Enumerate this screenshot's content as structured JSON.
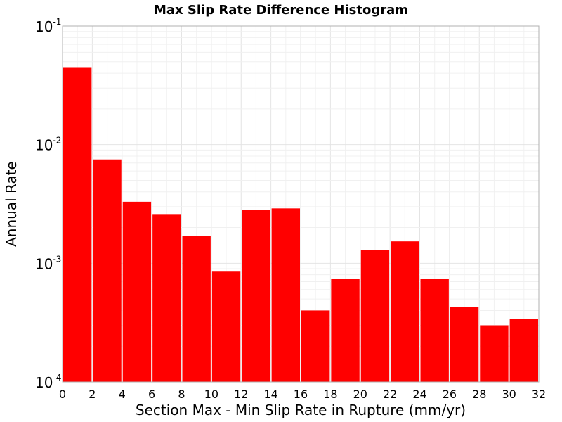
{
  "chart_data": {
    "type": "bar",
    "title": "Max Slip Rate Difference Histogram",
    "xlabel": "Section Max - Min Slip Rate in Rupture (mm/yr)",
    "ylabel": "Annual Rate",
    "xlim": [
      0,
      32
    ],
    "ylim": [
      0.0001,
      0.1
    ],
    "y_scale": "log",
    "x_ticks": [
      "0",
      "2",
      "4",
      "6",
      "8",
      "10",
      "12",
      "14",
      "16",
      "18",
      "20",
      "22",
      "24",
      "26",
      "28",
      "30",
      "32"
    ],
    "y_ticks": [
      {
        "base": "10",
        "exp": "-1",
        "value": 0.1
      },
      {
        "base": "10",
        "exp": "-2",
        "value": 0.01
      },
      {
        "base": "10",
        "exp": "-3",
        "value": 0.001
      },
      {
        "base": "10",
        "exp": "-4",
        "value": 0.0001
      }
    ],
    "grid": true,
    "bar_color": "#ff0000",
    "bins": [
      {
        "x": 1,
        "value": 0.045
      },
      {
        "x": 3,
        "value": 0.0075
      },
      {
        "x": 5,
        "value": 0.0033
      },
      {
        "x": 7,
        "value": 0.0026
      },
      {
        "x": 9,
        "value": 0.0017
      },
      {
        "x": 11,
        "value": 0.00085
      },
      {
        "x": 13,
        "value": 0.0028
      },
      {
        "x": 15,
        "value": 0.0029
      },
      {
        "x": 17,
        "value": 0.0004
      },
      {
        "x": 19,
        "value": 0.00074
      },
      {
        "x": 21,
        "value": 0.0013
      },
      {
        "x": 23,
        "value": 0.00153
      },
      {
        "x": 25,
        "value": 0.00074
      },
      {
        "x": 27,
        "value": 0.00043
      },
      {
        "x": 29,
        "value": 0.0003
      },
      {
        "x": 31,
        "value": 0.00034
      }
    ]
  }
}
